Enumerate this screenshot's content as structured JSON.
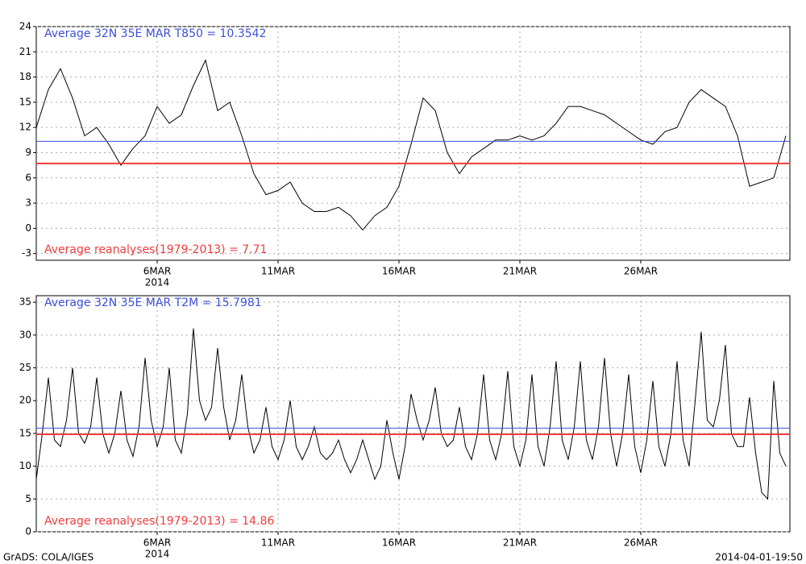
{
  "chart_data": [
    {
      "type": "line",
      "categories": [
        null,
        null,
        null,
        null,
        null,
        null,
        null,
        null,
        null,
        null,
        "6MAR",
        null,
        null,
        null,
        null,
        null,
        null,
        null,
        null,
        null,
        "11MAR",
        null,
        null,
        null,
        null,
        null,
        null,
        null,
        null,
        null,
        "16MAR",
        null,
        null,
        null,
        null,
        null,
        null,
        null,
        null,
        null,
        "21MAR",
        null,
        null,
        null,
        null,
        null,
        null,
        null,
        null,
        null,
        "26MAR",
        null,
        null,
        null,
        null,
        null,
        null,
        null,
        null,
        null,
        null,
        null,
        null
      ],
      "year_label": "2014",
      "values": [
        12,
        16.5,
        19,
        15.5,
        11,
        12,
        10,
        7.5,
        9.5,
        11,
        14.5,
        12.5,
        13.5,
        17,
        20,
        14,
        15,
        11,
        6.5,
        4,
        4.5,
        5.5,
        3,
        2,
        2,
        2.5,
        1.5,
        -0.2,
        1.5,
        2.5,
        5,
        10,
        15.5,
        14,
        9,
        6.5,
        8.5,
        9.5,
        10.5,
        10.5,
        11,
        10.5,
        11,
        12.5,
        14.5,
        14.5,
        14,
        13.5,
        12.5,
        11.5,
        10.5,
        10,
        11.5,
        12,
        15,
        16.5,
        15.5,
        14.5,
        11,
        5,
        5.5,
        6,
        11
      ],
      "color": "#000000",
      "reference_lines": [
        {
          "label": "Average 32N 35E MAR T850 = 10.3542",
          "value": 10.3542,
          "color": "#3c50dc"
        },
        {
          "label": "Average reanalyses(1979-2013) = 7.71",
          "value": 7.71,
          "color": "#f03c3c"
        }
      ],
      "ylim": [
        -3.8,
        24
      ],
      "yticks": [
        -3,
        0,
        3,
        6,
        9,
        12,
        15,
        18,
        21,
        24
      ],
      "grid": true
    },
    {
      "type": "line",
      "categories": [
        null,
        null,
        null,
        null,
        null,
        null,
        null,
        null,
        null,
        null,
        null,
        null,
        null,
        null,
        null,
        null,
        null,
        null,
        null,
        null,
        "6MAR",
        null,
        null,
        null,
        null,
        null,
        null,
        null,
        null,
        null,
        null,
        null,
        null,
        null,
        null,
        null,
        null,
        null,
        null,
        null,
        "11MAR",
        null,
        null,
        null,
        null,
        null,
        null,
        null,
        null,
        null,
        null,
        null,
        null,
        null,
        null,
        null,
        null,
        null,
        null,
        null,
        "16MAR",
        null,
        null,
        null,
        null,
        null,
        null,
        null,
        null,
        null,
        null,
        null,
        null,
        null,
        null,
        null,
        null,
        null,
        null,
        null,
        "21MAR",
        null,
        null,
        null,
        null,
        null,
        null,
        null,
        null,
        null,
        null,
        null,
        null,
        null,
        null,
        null,
        null,
        null,
        null,
        null,
        "26MAR",
        null,
        null,
        null,
        null,
        null,
        null,
        null,
        null,
        null,
        null,
        null,
        null,
        null,
        null,
        null,
        null,
        null,
        null,
        null,
        null,
        null,
        null,
        null,
        null
      ],
      "year_label": "2014",
      "values": [
        8,
        15,
        23.5,
        14,
        13,
        17,
        25,
        15,
        13.5,
        16,
        23.5,
        15,
        12,
        15,
        21.5,
        14,
        11.5,
        16,
        26.5,
        17,
        13,
        16,
        25,
        14,
        12,
        18,
        31,
        20,
        17,
        19,
        28,
        19,
        14,
        17,
        24,
        16,
        12,
        14,
        19,
        13,
        11,
        14,
        20,
        13,
        11,
        13,
        16,
        12,
        11,
        12,
        14,
        11,
        9,
        11,
        14,
        11,
        8,
        10,
        17,
        12,
        8,
        13,
        21,
        17,
        14,
        17,
        22,
        15,
        13,
        14,
        19,
        13,
        11,
        15,
        24,
        14,
        11,
        15,
        24.5,
        13,
        10,
        14,
        24,
        13,
        10,
        16,
        26,
        14,
        11,
        16,
        26,
        14,
        11,
        16,
        26.5,
        15,
        10,
        15,
        24,
        13,
        9,
        14,
        23,
        13,
        10,
        15,
        26,
        14,
        10,
        20,
        30.5,
        17,
        16,
        20,
        28.5,
        15,
        13,
        13,
        20.5,
        12,
        6,
        5,
        23,
        12,
        10
      ],
      "color": "#000000",
      "reference_lines": [
        {
          "label": "Average 32N 35E MAR T2M = 15.7981",
          "value": 15.7981,
          "color": "#3c50dc"
        },
        {
          "label": "Average reanalyses(1979-2013) = 14.86",
          "value": 14.86,
          "color": "#f03c3c"
        }
      ],
      "ylim": [
        0,
        36
      ],
      "yticks": [
        0,
        5,
        10,
        15,
        20,
        25,
        30,
        35
      ],
      "grid": true
    }
  ],
  "footer": {
    "left": "GrADS: COLA/IGES",
    "right": "2014-04-01-19:50"
  }
}
